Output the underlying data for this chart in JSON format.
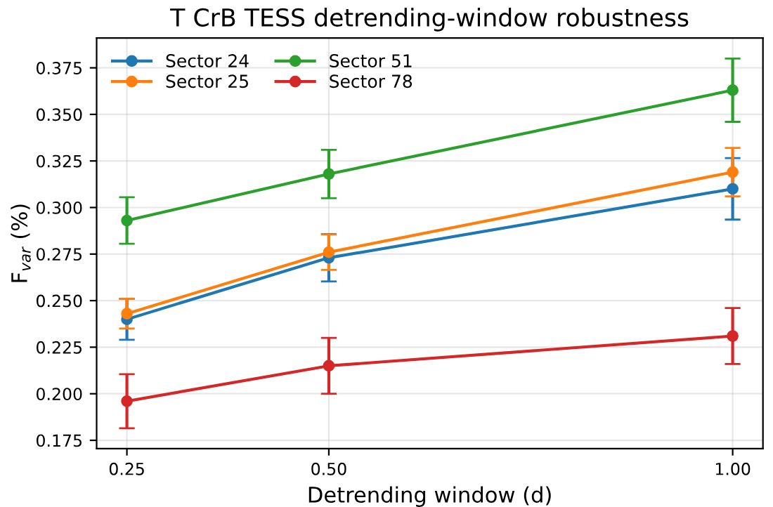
{
  "chart_data": {
    "type": "line",
    "title": "T CrB TESS detrending-window robustness",
    "xlabel": "Detrending window (d)",
    "ylabel": "F$_{var}$ (%)",
    "x": [
      0.25,
      0.5,
      1.0
    ],
    "series": [
      {
        "name": "Sector 24",
        "color": "#1f77b4",
        "values": [
          0.24,
          0.273,
          0.31
        ],
        "errors": [
          0.011,
          0.0127,
          0.0165
        ]
      },
      {
        "name": "Sector 25",
        "color": "#ff7f0e",
        "values": [
          0.243,
          0.276,
          0.319
        ],
        "errors": [
          0.008,
          0.0095,
          0.013
        ]
      },
      {
        "name": "Sector 51",
        "color": "#2ca02c",
        "values": [
          0.293,
          0.318,
          0.363
        ],
        "errors": [
          0.0125,
          0.013,
          0.017
        ]
      },
      {
        "name": "Sector 78",
        "color": "#d62728",
        "values": [
          0.196,
          0.215,
          0.231
        ],
        "errors": [
          0.0145,
          0.015,
          0.015
        ]
      }
    ],
    "xlim": [
      0.2125,
      1.0375
    ],
    "xticks": [
      {
        "value": 0.25,
        "label": "0.25"
      },
      {
        "value": 0.5,
        "label": "0.50"
      },
      {
        "value": 1.0,
        "label": "1.00"
      }
    ],
    "ylim": [
      0.1705,
      0.391
    ],
    "yticks": [
      {
        "value": 0.175,
        "label": "0.175"
      },
      {
        "value": 0.2,
        "label": "0.200"
      },
      {
        "value": 0.225,
        "label": "0.225"
      },
      {
        "value": 0.25,
        "label": "0.250"
      },
      {
        "value": 0.275,
        "label": "0.275"
      },
      {
        "value": 0.3,
        "label": "0.300"
      },
      {
        "value": 0.325,
        "label": "0.325"
      },
      {
        "value": 0.35,
        "label": "0.350"
      },
      {
        "value": 0.375,
        "label": "0.375"
      }
    ],
    "grid": true,
    "legend": "top left",
    "marker": "circle",
    "line_style": "solid"
  }
}
